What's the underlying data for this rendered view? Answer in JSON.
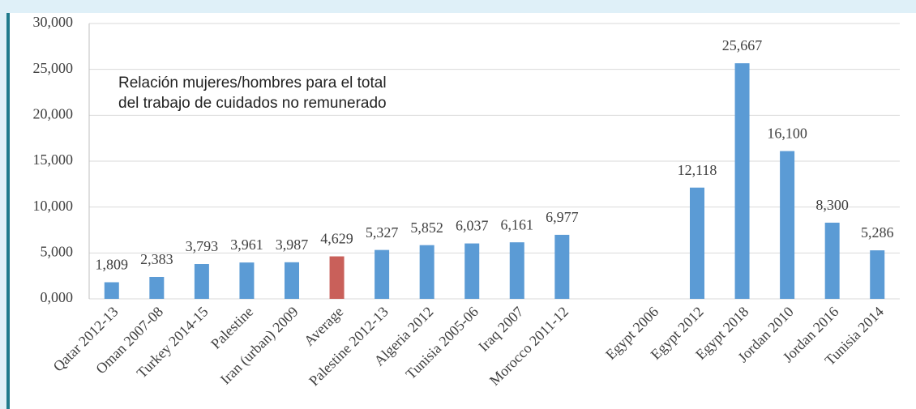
{
  "chart_data": {
    "type": "bar",
    "annotation": [
      "Relación mujeres/hombres para el total",
      "del trabajo de cuidados no remunerado"
    ],
    "categories": [
      "Qatar 2012-13",
      "Oman 2007-08",
      "Turkey 2014-15",
      "Palestine",
      "Iran (urban) 2009",
      "Average",
      "Palestine 2012-13",
      "Algeria 2012",
      "Tunisia 2005-06",
      "Iraq 2007",
      "Morocco 2011-12",
      null,
      "Egypt 2006",
      "Egypt 2012",
      "Egypt 2018",
      "Jordan 2010",
      "Jordan 2016",
      "Tunisia 2014"
    ],
    "values": [
      1809,
      2383,
      3793,
      3961,
      3987,
      4629,
      5327,
      5852,
      6037,
      6161,
      6977,
      null,
      null,
      12118,
      25667,
      16100,
      8300,
      5286
    ],
    "value_labels": [
      "1,809",
      "2,383",
      "3,793",
      "3,961",
      "3,987",
      "4,629",
      "5,327",
      "5,852",
      "6,037",
      "6,161",
      "6,977",
      null,
      null,
      "12,118",
      "25,667",
      "16,100",
      "8,300",
      "5,286"
    ],
    "colors": [
      "#5b9bd5",
      "#5b9bd5",
      "#5b9bd5",
      "#5b9bd5",
      "#5b9bd5",
      "#c9605a",
      "#5b9bd5",
      "#5b9bd5",
      "#5b9bd5",
      "#5b9bd5",
      "#5b9bd5",
      "#5b9bd5",
      "#5b9bd5",
      "#5b9bd5",
      "#5b9bd5",
      "#5b9bd5",
      "#5b9bd5",
      "#5b9bd5"
    ],
    "ylim": [
      0,
      30000
    ],
    "yticks": [
      {
        "value": 0,
        "label": "0,000"
      },
      {
        "value": 5000,
        "label": "5,000"
      },
      {
        "value": 10000,
        "label": "10,000"
      },
      {
        "value": 15000,
        "label": "15,000"
      },
      {
        "value": 20000,
        "label": "20,000"
      },
      {
        "value": 25000,
        "label": "25,000"
      },
      {
        "value": 30000,
        "label": "30,000"
      }
    ],
    "grid": true
  }
}
